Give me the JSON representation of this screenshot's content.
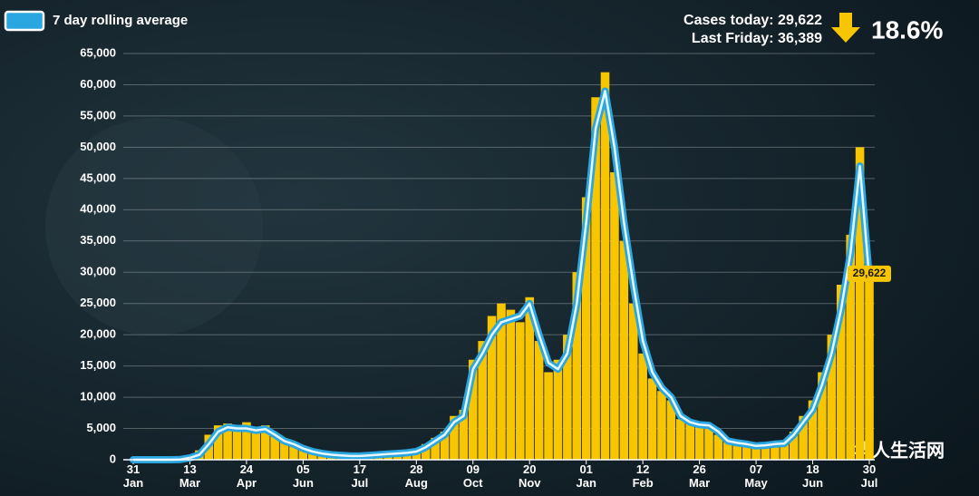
{
  "chart_data": {
    "type": "combo",
    "legend_position": "upper left",
    "grid": true,
    "cases_today": "Cases today: 29,622",
    "last_friday": "Last Friday: 36,389",
    "change": "18.6%",
    "end_label": "29,622",
    "watermark": "华人生活网",
    "x": [
      0,
      7,
      14,
      21,
      28,
      35,
      42,
      49,
      56,
      63,
      70,
      77,
      84,
      91,
      98,
      105,
      112,
      119,
      126,
      133,
      140,
      147,
      154,
      161,
      168,
      175,
      182,
      189,
      196,
      203,
      210,
      217,
      224,
      231,
      238,
      245,
      252,
      259,
      266,
      273,
      280,
      287,
      294,
      301,
      308,
      315,
      322,
      329,
      336,
      343,
      350,
      357,
      364,
      371,
      378,
      385,
      392,
      399,
      406,
      413,
      420,
      427,
      434,
      441,
      448,
      455,
      462,
      469,
      476,
      483,
      490,
      497,
      504,
      511,
      518,
      525,
      532,
      539,
      546
    ],
    "xlim": [
      0,
      546
    ],
    "xticks": [
      {
        "value": 0,
        "label": "31 Jan"
      },
      {
        "value": 42,
        "label": "13 Mar"
      },
      {
        "value": 84,
        "label": "24 Apr"
      },
      {
        "value": 126,
        "label": "05 Jun"
      },
      {
        "value": 168,
        "label": "17 Jul"
      },
      {
        "value": 210,
        "label": "28 Aug"
      },
      {
        "value": 252,
        "label": "09 Oct"
      },
      {
        "value": 294,
        "label": "20 Nov"
      },
      {
        "value": 336,
        "label": "01 Jan"
      },
      {
        "value": 378,
        "label": "12 Feb"
      },
      {
        "value": 420,
        "label": "26 Mar"
      },
      {
        "value": 462,
        "label": "07 May"
      },
      {
        "value": 504,
        "label": "18 Jun"
      },
      {
        "value": 546,
        "label": "30 Jul"
      }
    ],
    "ylim": [
      0,
      65000
    ],
    "yticks": [
      0,
      {
        "value": 5000,
        "label": "5,000"
      },
      {
        "value": 10000,
        "label": "10,000"
      },
      {
        "value": 15000,
        "label": "15,000"
      },
      {
        "value": 20000,
        "label": "20,000"
      },
      {
        "value": 25000,
        "label": "25,000"
      },
      {
        "value": 30000,
        "label": "30,000"
      },
      {
        "value": 35000,
        "label": "35,000"
      },
      {
        "value": 40000,
        "label": "40,000"
      },
      {
        "value": 45000,
        "label": "45,000"
      },
      {
        "value": 50000,
        "label": "50,000"
      },
      {
        "value": 55000,
        "label": "55,000"
      },
      {
        "value": 60000,
        "label": "60,000"
      },
      {
        "value": 65000,
        "label": "65,000"
      }
    ],
    "bars": {
      "color": "#f7c600",
      "values": [
        0,
        0,
        0,
        0,
        0,
        100,
        500,
        1500,
        4000,
        5500,
        5800,
        5200,
        6000,
        4800,
        5500,
        3800,
        2800,
        2300,
        1600,
        1200,
        900,
        800,
        700,
        600,
        650,
        750,
        850,
        950,
        1100,
        1200,
        1500,
        2500,
        3500,
        4500,
        7000,
        8000,
        16000,
        19000,
        23000,
        25000,
        24000,
        22000,
        26000,
        19000,
        14000,
        16000,
        20000,
        30000,
        42000,
        58000,
        62000,
        46000,
        35000,
        25000,
        17000,
        13000,
        11000,
        9500,
        6500,
        5800,
        5500,
        5000,
        4000,
        2800,
        2600,
        2400,
        2100,
        2400,
        2600,
        2800,
        4500,
        7000,
        9500,
        14000,
        20000,
        28000,
        36000,
        50000,
        29622
      ]
    },
    "series": [
      {
        "name": "7 day rolling average",
        "color": "#2aa7e0",
        "values": [
          0,
          0,
          0,
          0,
          0,
          50,
          300,
          800,
          2500,
          4500,
          5200,
          5000,
          5000,
          4700,
          4900,
          4000,
          3000,
          2500,
          1800,
          1300,
          1000,
          800,
          700,
          600,
          600,
          700,
          800,
          900,
          1000,
          1100,
          1300,
          2000,
          3000,
          4000,
          6000,
          7000,
          14500,
          17000,
          20000,
          22000,
          22500,
          23000,
          25000,
          20000,
          15500,
          14500,
          17000,
          25000,
          38000,
          53000,
          59000,
          50000,
          38000,
          28000,
          19000,
          14000,
          11500,
          10000,
          7000,
          6000,
          5600,
          5500,
          4500,
          3000,
          2700,
          2500,
          2200,
          2300,
          2500,
          2600,
          4000,
          6000,
          8000,
          12000,
          17000,
          24000,
          33000,
          47000,
          29000
        ]
      }
    ]
  }
}
